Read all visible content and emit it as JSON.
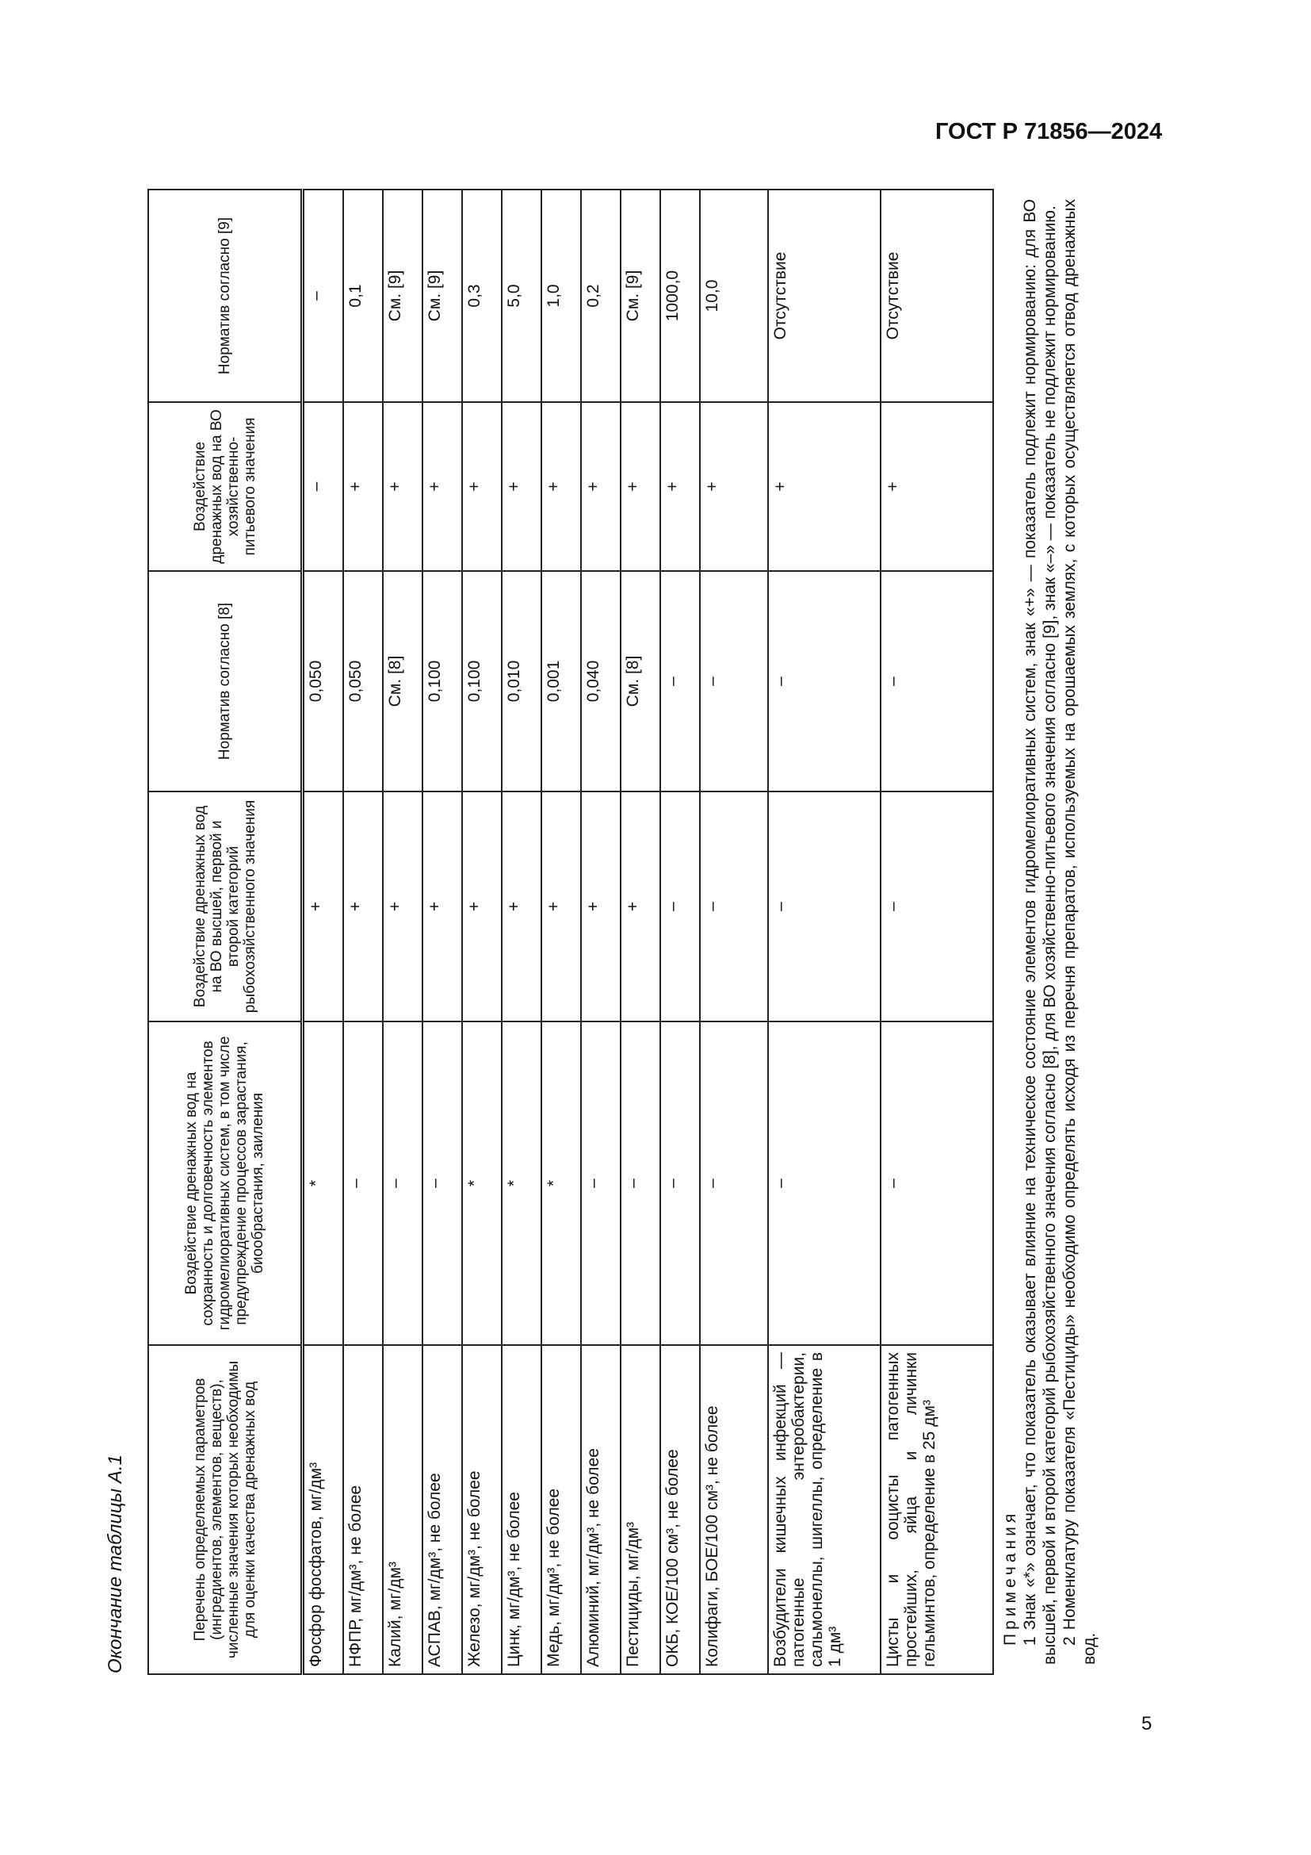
{
  "header": {
    "doc_id": "ГОСТ Р 71856—2024"
  },
  "page_number": "5",
  "caption": "Окончание таблицы А.1",
  "table": {
    "columns": [
      "Перечень определяемых параметров (ингредиентов, элементов, веществ), численные значения которых необходимы для оценки качества дренажных вод",
      "Воздействие дренажных вод на сохранность и долговечность элементов гидромелиоративных систем, в том числе предупреждение процессов зарастания, биообрастания, заиления",
      "Воздействие дренажных вод на ВО высшей, первой и второй категорий рыбохозяйственного значения",
      "Норматив согласно [8]",
      "Воздействие дренажных вод на ВО хозяйственно-питьевого значения",
      "Норматив согласно [9]"
    ],
    "rows": [
      {
        "name": "Фосфор фосфатов, мг/дм³",
        "c1": "*",
        "c2": "+",
        "c3": "0,050",
        "c4": "–",
        "c5": "–"
      },
      {
        "name": "НФПР, мг/дм³, не более",
        "c1": "–",
        "c2": "+",
        "c3": "0,050",
        "c4": "+",
        "c5": "0,1"
      },
      {
        "name": "Калий, мг/дм³",
        "c1": "–",
        "c2": "+",
        "c3": "См. [8]",
        "c4": "+",
        "c5": "См. [9]"
      },
      {
        "name": "АСПАВ, мг/дм³, не более",
        "c1": "–",
        "c2": "+",
        "c3": "0,100",
        "c4": "+",
        "c5": "См. [9]"
      },
      {
        "name": "Железо, мг/дм³, не более",
        "c1": "*",
        "c2": "+",
        "c3": "0,100",
        "c4": "+",
        "c5": "0,3"
      },
      {
        "name": "Цинк, мг/дм³, не более",
        "c1": "*",
        "c2": "+",
        "c3": "0,010",
        "c4": "+",
        "c5": "5,0"
      },
      {
        "name": "Медь, мг/дм³, не более",
        "c1": "*",
        "c2": "+",
        "c3": "0,001",
        "c4": "+",
        "c5": "1,0"
      },
      {
        "name": "Алюминий, мг/дм³, не более",
        "c1": "–",
        "c2": "+",
        "c3": "0,040",
        "c4": "+",
        "c5": "0,2"
      },
      {
        "name": "Пестициды, мг/дм³",
        "c1": "–",
        "c2": "+",
        "c3": "См. [8]",
        "c4": "+",
        "c5": "См. [9]"
      },
      {
        "name": "ОКБ, КОЕ/100 см³, не более",
        "c1": "–",
        "c2": "–",
        "c3": "–",
        "c4": "+",
        "c5": "1000,0"
      },
      {
        "name": "Колифаги, БОЕ/100 см³, не более",
        "c1": "–",
        "c2": "–",
        "c3": "–",
        "c4": "+",
        "c5": "10,0"
      },
      {
        "name": "Возбудители кишечных инфекций — патогенные энтеробактерии, сальмонеллы, шигеллы, определение в 1 дм³",
        "c1": "–",
        "c2": "–",
        "c3": "–",
        "c4": "+",
        "c5": "Отсутствие"
      },
      {
        "name": "Цисты и ооцисты патогенных простейших, яйца и личинки гельминтов, определение в 25 дм³",
        "c1": "–",
        "c2": "–",
        "c3": "–",
        "c4": "+",
        "c5": "Отсутствие"
      }
    ]
  },
  "notes": {
    "heading": "Примечания",
    "items": [
      "1 Знак «*» означает, что показатель оказывает влияние на техническое состояние элементов гидромелиоративных систем, знак «+» — показатель подлежит нормированию: для ВО высшей, первой и второй категорий рыбохозяйственного значения согласно [8], для ВО хозяйственно-питьевого значения согласно [9], знак «–» — показатель не подлежит нормированию.",
      "2 Номенклатуру показателя «Пестициды» необходимо определять исходя из перечня препаратов, используемых на орошаемых землях, с которых осуществляется отвод дренажных вод."
    ]
  }
}
